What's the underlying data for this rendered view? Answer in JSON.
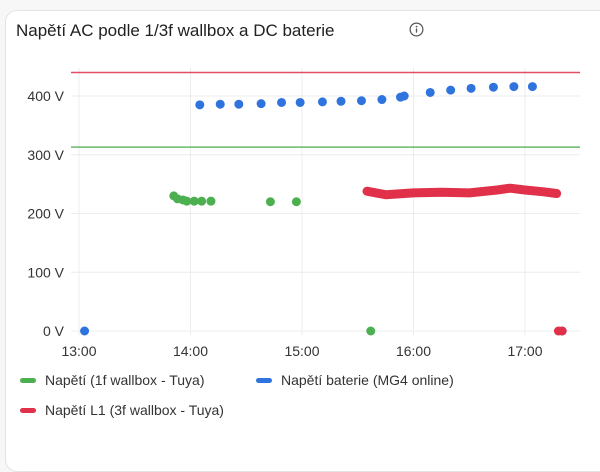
{
  "card": {
    "title": "Napětí AC podle 1/3f wallbox a DC baterie",
    "info_icon": "info-circle-icon"
  },
  "legend": [
    {
      "label": "Napětí (1f wallbox - Tuya)",
      "color": "#4caf50"
    },
    {
      "label": "Napětí baterie (MG4 online)",
      "color": "#2f74de"
    },
    {
      "label": "Napětí L1 (3f wallbox - Tuya)",
      "color": "#e0304a"
    }
  ],
  "chart_data": {
    "type": "scatter",
    "title": "Napětí AC podle 1/3f wallbox a DC baterie",
    "xlabel": "",
    "ylabel": "",
    "x_ticks": [
      "13:00",
      "14:00",
      "15:00",
      "16:00",
      "17:00"
    ],
    "y_ticks": [
      "0 V",
      "100 V",
      "200 V",
      "300 V",
      "400 V"
    ],
    "ylim": [
      0,
      440
    ],
    "xlim": [
      "12:55",
      "17:30"
    ],
    "grid": true,
    "legend_position": "bottom",
    "thresholds": [
      {
        "value": 440,
        "color": "#e0304a"
      },
      {
        "value": 313,
        "color": "#4caf50"
      }
    ],
    "series": [
      {
        "name": "Napětí (1f wallbox - Tuya)",
        "color": "#4caf50",
        "points": [
          [
            "13:51",
            230
          ],
          [
            "13:53",
            225
          ],
          [
            "13:56",
            223
          ],
          [
            "13:58",
            221
          ],
          [
            "14:02",
            221
          ],
          [
            "14:06",
            221
          ],
          [
            "14:11",
            221
          ],
          [
            "14:43",
            220
          ],
          [
            "14:57",
            220
          ],
          [
            "15:37",
            0
          ]
        ]
      },
      {
        "name": "Napětí baterie (MG4 online)",
        "color": "#2f74de",
        "points": [
          [
            "13:03",
            0
          ],
          [
            "14:05",
            385
          ],
          [
            "14:16",
            386
          ],
          [
            "14:26",
            386
          ],
          [
            "14:38",
            387
          ],
          [
            "14:49",
            389
          ],
          [
            "14:59",
            389
          ],
          [
            "15:11",
            390
          ],
          [
            "15:21",
            391
          ],
          [
            "15:32",
            392
          ],
          [
            "15:43",
            394
          ],
          [
            "15:53",
            398
          ],
          [
            "15:55",
            400
          ],
          [
            "16:09",
            406
          ],
          [
            "16:20",
            410
          ],
          [
            "16:31",
            413
          ],
          [
            "16:43",
            415
          ],
          [
            "16:54",
            416
          ],
          [
            "17:04",
            416
          ],
          [
            "17:20",
            0
          ]
        ]
      },
      {
        "name": "Napětí L1 (3f wallbox - Tuya)",
        "color": "#e0304a",
        "range": [
          "15:35",
          "17:17"
        ],
        "approx_value": 237,
        "points": [
          [
            "15:35",
            238
          ],
          [
            "15:45",
            232
          ],
          [
            "16:00",
            235
          ],
          [
            "16:15",
            236
          ],
          [
            "16:30",
            235
          ],
          [
            "16:45",
            240
          ],
          [
            "16:52",
            243
          ],
          [
            "17:00",
            240
          ],
          [
            "17:10",
            237
          ],
          [
            "17:17",
            234
          ],
          [
            "17:18",
            0
          ],
          [
            "17:20",
            0
          ]
        ]
      }
    ]
  }
}
